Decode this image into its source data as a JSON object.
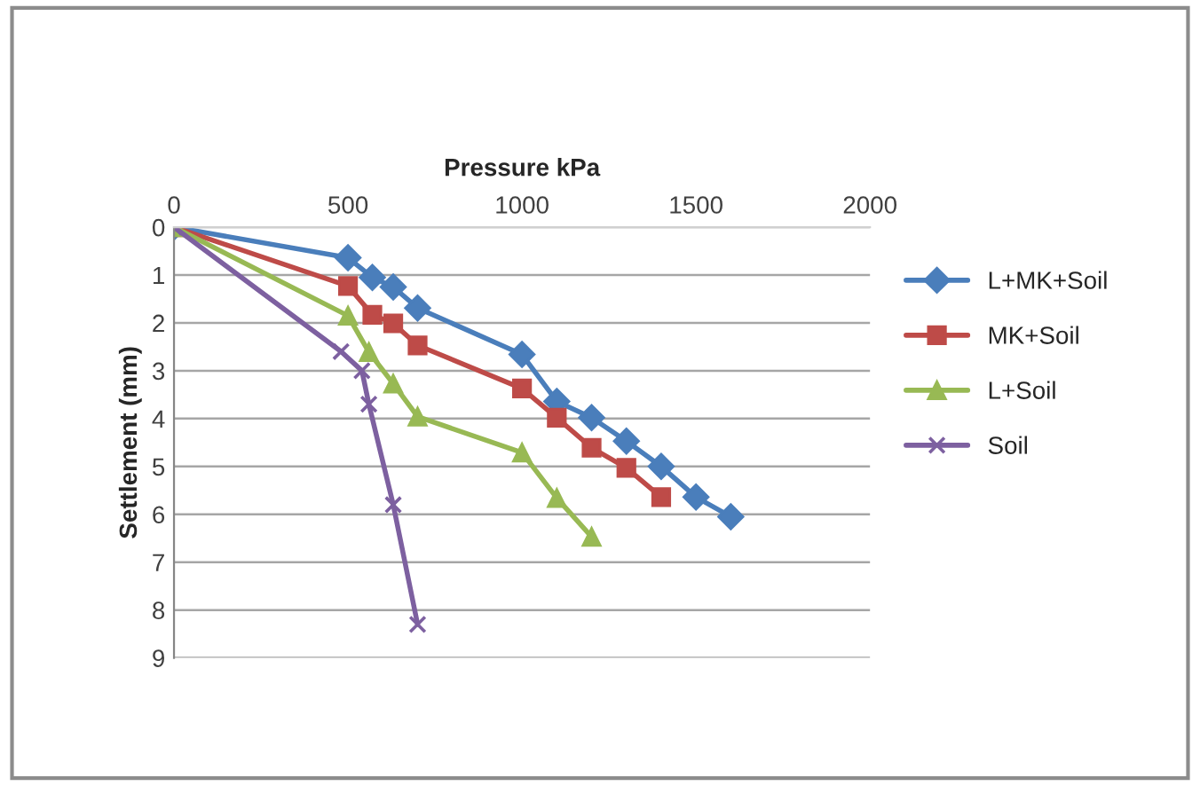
{
  "chart_data": {
    "type": "line",
    "xlabel": "Pressure kPa",
    "ylabel": "Settlement (mm)",
    "xlim": [
      0,
      2000
    ],
    "xticks": [
      0,
      500,
      1000,
      1500,
      2000
    ],
    "ylim": [
      9,
      0
    ],
    "yticks": [
      0,
      1,
      2,
      3,
      4,
      5,
      6,
      7,
      8,
      9
    ],
    "grid": "y",
    "legend": "right",
    "series": [
      {
        "name": "L+MK+Soil",
        "color": "#4a7ebb",
        "marker": "diamond",
        "x": [
          0,
          500,
          570,
          630,
          700,
          1000,
          1100,
          1200,
          1300,
          1400,
          1500,
          1600
        ],
        "values": [
          0,
          0.64,
          1.05,
          1.25,
          1.69,
          2.66,
          3.64,
          3.98,
          4.47,
          5.0,
          5.64,
          6.05
        ]
      },
      {
        "name": "MK+Soil",
        "color": "#be4b48",
        "marker": "square",
        "x": [
          0,
          500,
          570,
          630,
          700,
          1000,
          1100,
          1200,
          1300,
          1400
        ],
        "values": [
          0,
          1.23,
          1.83,
          2.01,
          2.47,
          3.37,
          3.98,
          4.61,
          5.03,
          5.64
        ]
      },
      {
        "name": "L+Soil",
        "color": "#98b954",
        "marker": "triangle",
        "x": [
          0,
          500,
          560,
          630,
          700,
          1000,
          1100,
          1200
        ],
        "values": [
          0,
          1.85,
          2.61,
          3.27,
          3.96,
          4.71,
          5.66,
          6.47
        ]
      },
      {
        "name": "Soil",
        "color": "#7d60a0",
        "marker": "cross",
        "x": [
          0,
          480,
          540,
          560,
          630,
          700
        ],
        "values": [
          0,
          2.6,
          3.0,
          3.7,
          5.8,
          8.3
        ]
      }
    ]
  }
}
